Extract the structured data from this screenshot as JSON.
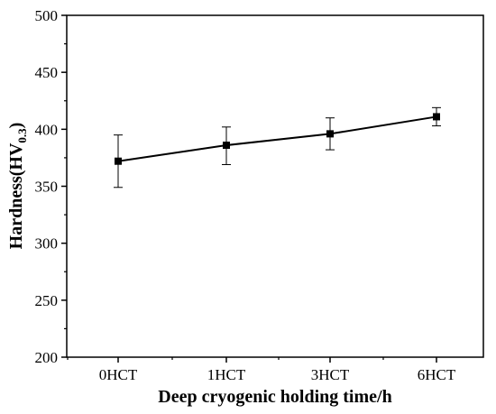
{
  "chart_data": {
    "type": "line",
    "title": "",
    "xlabel": "Deep cryogenic holding time/h",
    "ylabel_main": "Hardness(HV",
    "ylabel_sub": "0.3",
    "ylabel_close": ")",
    "categories": [
      "0HCT",
      "1HCT",
      "3HCT",
      "6HCT"
    ],
    "series": [
      {
        "values": [
          372,
          386,
          396,
          411
        ],
        "error_low": [
          349,
          369,
          382,
          403
        ],
        "error_high": [
          395,
          402,
          410,
          419
        ]
      }
    ],
    "ylim": [
      200,
      500
    ],
    "yticks": [
      200,
      250,
      300,
      350,
      400,
      450,
      500
    ],
    "grid": false,
    "legend": "none",
    "line_color": "#000000",
    "marker": "square"
  }
}
